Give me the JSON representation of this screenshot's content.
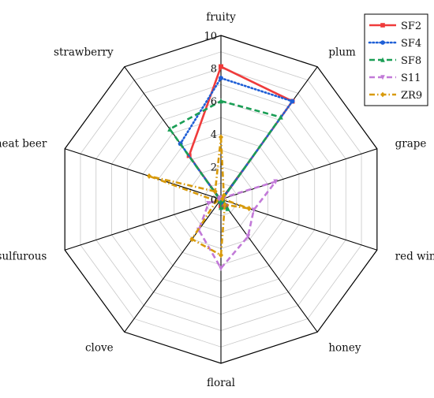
{
  "chart_data": {
    "type": "radar",
    "axes": [
      "fruity",
      "plum",
      "grape",
      "red wine",
      "honey",
      "floral",
      "clove",
      "sulfurous",
      "wheat beer",
      "strawberry"
    ],
    "rlim": [
      0,
      10
    ],
    "rticks": [
      0,
      2,
      4,
      6,
      8,
      10
    ],
    "rtick_labels": [
      "0",
      "2",
      "4",
      "6",
      "8",
      "10"
    ],
    "grid": true,
    "legend_position": "top-right",
    "series": [
      {
        "name": "SF2",
        "color": "#ef3b3b",
        "dash": "solid",
        "marker": "square",
        "values": [
          8.1,
          7.4,
          0.1,
          0.1,
          0.5,
          0.4,
          0.1,
          0.1,
          0.1,
          3.3
        ]
      },
      {
        "name": "SF4",
        "color": "#1f5fd6",
        "dash": "dotted",
        "marker": "circle",
        "values": [
          7.4,
          7.4,
          0.1,
          0.1,
          0.4,
          0.2,
          0.1,
          0.1,
          0.1,
          4.2
        ]
      },
      {
        "name": "SF8",
        "color": "#1a9e55",
        "dash": "dashed",
        "marker": "triangle",
        "values": [
          6.0,
          6.2,
          0.1,
          0.1,
          0.7,
          0.5,
          0.1,
          0.1,
          0.1,
          5.3
        ]
      },
      {
        "name": "S11",
        "color": "#c27ad8",
        "dash": "dashed",
        "marker": "triangle-down",
        "values": [
          0.1,
          0.1,
          3.5,
          2.1,
          2.8,
          4.2,
          2.3,
          0.8,
          0.1,
          0.1
        ]
      },
      {
        "name": "ZR9",
        "color": "#d89a0a",
        "dash": "dashdot",
        "marker": "diamond",
        "values": [
          3.8,
          0.3,
          0.1,
          1.8,
          0.4,
          3.4,
          3.0,
          0.3,
          4.6,
          0.6
        ]
      }
    ]
  }
}
